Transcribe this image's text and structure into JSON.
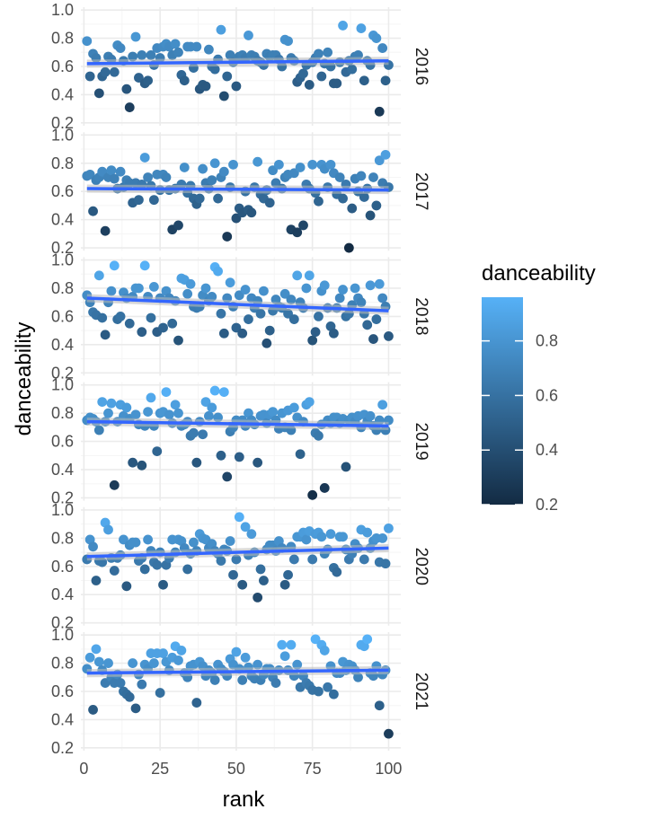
{
  "chart_data": {
    "type": "scatter",
    "title": "",
    "xlabel": "rank",
    "ylabel": "danceability",
    "xlim": [
      -1,
      104
    ],
    "ylim": [
      0.18,
      1.02
    ],
    "x_ticks": [
      0,
      25,
      50,
      75,
      100
    ],
    "y_ticks": [
      0.2,
      0.4,
      0.6,
      0.8,
      1.0
    ],
    "x_tick_labels": [
      "0",
      "25",
      "50",
      "75",
      "100"
    ],
    "y_tick_labels": [
      "0.2",
      "0.4",
      "0.6",
      "0.8",
      "1.0"
    ],
    "colors": {
      "low": "#132b43",
      "high": "#56b1f7",
      "trend": "#3366ff",
      "trend_band": "#bbbbbb",
      "grid_major": "#ebebeb",
      "grid_minor": "#f5f5f5"
    },
    "legend": {
      "title": "danceability",
      "placement": "right",
      "range": [
        0.2,
        0.96
      ],
      "breaks": [
        0.2,
        0.4,
        0.6,
        0.8
      ],
      "labels": [
        "0.2",
        "0.4",
        "0.6",
        "0.8"
      ]
    },
    "panels": [
      {
        "label": "2016",
        "trend": [
          0.62,
          0.64
        ],
        "values": [
          0.78,
          0.53,
          0.69,
          0.66,
          0.41,
          0.53,
          0.56,
          0.67,
          0.65,
          0.56,
          0.75,
          0.73,
          0.64,
          0.44,
          0.31,
          0.67,
          0.81,
          0.52,
          0.68,
          0.48,
          0.5,
          0.68,
          0.61,
          0.73,
          0.66,
          0.74,
          0.76,
          0.74,
          0.68,
          0.76,
          0.7,
          0.54,
          0.5,
          0.74,
          0.74,
          0.59,
          0.74,
          0.44,
          0.47,
          0.46,
          0.72,
          0.6,
          0.58,
          0.65,
          0.86,
          0.39,
          0.53,
          0.68,
          0.63,
          0.46,
          0.67,
          0.68,
          0.66,
          0.82,
          0.68,
          0.67,
          0.64,
          0.63,
          0.61,
          0.69,
          0.67,
          0.68,
          0.68,
          0.65,
          0.6,
          0.79,
          0.78,
          0.66,
          0.64,
          0.49,
          0.52,
          0.55,
          0.61,
          0.47,
          0.63,
          0.66,
          0.69,
          0.53,
          0.62,
          0.7,
          0.6,
          0.48,
          0.48,
          0.63,
          0.89,
          0.56,
          0.64,
          0.58,
          0.67,
          0.68,
          0.87,
          0.5,
          0.64,
          0.61,
          0.82,
          0.8,
          0.28,
          0.73,
          0.5,
          0.61
        ]
      },
      {
        "label": "2017",
        "trend": [
          0.62,
          0.61
        ],
        "values": [
          0.71,
          0.72,
          0.46,
          0.68,
          0.7,
          0.74,
          0.32,
          0.7,
          0.75,
          0.69,
          0.62,
          0.74,
          0.63,
          0.68,
          0.66,
          0.52,
          0.66,
          0.54,
          0.65,
          0.84,
          0.7,
          0.64,
          0.54,
          0.72,
          0.61,
          0.72,
          0.7,
          0.61,
          0.33,
          0.62,
          0.36,
          0.65,
          0.77,
          0.59,
          0.64,
          0.55,
          0.51,
          0.55,
          0.76,
          0.66,
          0.62,
          0.68,
          0.8,
          0.55,
          0.7,
          0.74,
          0.28,
          0.63,
          0.79,
          0.41,
          0.48,
          0.45,
          0.6,
          0.47,
          0.45,
          0.63,
          0.81,
          0.58,
          0.55,
          0.61,
          0.52,
          0.75,
          0.66,
          0.79,
          0.62,
          0.7,
          0.72,
          0.33,
          0.73,
          0.31,
          0.77,
          0.36,
          0.65,
          0.62,
          0.79,
          0.59,
          0.53,
          0.79,
          0.76,
          0.63,
          0.79,
          0.73,
          0.58,
          0.7,
          0.55,
          0.65,
          0.2,
          0.48,
          0.69,
          0.6,
          0.71,
          0.56,
          0.62,
          0.43,
          0.7,
          0.5,
          0.82,
          0.66,
          0.86,
          0.63
        ]
      },
      {
        "label": "2018",
        "trend": [
          0.73,
          0.64
        ],
        "values": [
          0.75,
          0.7,
          0.63,
          0.61,
          0.89,
          0.59,
          0.47,
          0.7,
          0.78,
          0.96,
          0.58,
          0.6,
          0.77,
          0.73,
          0.55,
          0.74,
          0.8,
          0.8,
          0.49,
          0.96,
          0.74,
          0.59,
          0.81,
          0.49,
          0.73,
          0.52,
          0.78,
          0.73,
          0.55,
          0.71,
          0.43,
          0.87,
          0.86,
          0.76,
          0.83,
          0.67,
          0.66,
          0.67,
          0.75,
          0.8,
          0.71,
          0.74,
          0.95,
          0.92,
          0.62,
          0.48,
          0.73,
          0.84,
          0.67,
          0.52,
          0.75,
          0.48,
          0.79,
          0.58,
          0.73,
          0.66,
          0.71,
          0.62,
          0.78,
          0.41,
          0.5,
          0.64,
          0.72,
          0.67,
          0.66,
          0.76,
          0.62,
          0.72,
          0.58,
          0.89,
          0.7,
          0.66,
          0.8,
          0.89,
          0.43,
          0.49,
          0.6,
          0.78,
          0.82,
          0.66,
          0.53,
          0.48,
          0.66,
          0.73,
          0.79,
          0.6,
          0.62,
          0.68,
          0.8,
          0.73,
          0.7,
          0.62,
          0.54,
          0.82,
          0.44,
          0.58,
          0.83,
          0.73,
          0.67,
          0.46
        ]
      },
      {
        "label": "2019",
        "trend": [
          0.74,
          0.71
        ],
        "values": [
          0.75,
          0.77,
          0.76,
          0.74,
          0.68,
          0.88,
          0.74,
          0.8,
          0.87,
          0.29,
          0.74,
          0.86,
          0.78,
          0.84,
          0.76,
          0.45,
          0.79,
          0.72,
          0.43,
          0.71,
          0.81,
          0.91,
          0.71,
          0.53,
          0.8,
          0.81,
          0.95,
          0.79,
          0.73,
          0.86,
          0.8,
          0.71,
          0.72,
          0.74,
          0.64,
          0.66,
          0.45,
          0.74,
          0.65,
          0.88,
          0.78,
          0.84,
          0.96,
          0.77,
          0.5,
          0.95,
          0.35,
          0.67,
          0.7,
          0.75,
          0.49,
          0.75,
          0.71,
          0.8,
          0.75,
          0.72,
          0.45,
          0.78,
          0.79,
          0.73,
          0.79,
          0.81,
          0.75,
          0.69,
          0.8,
          0.7,
          0.82,
          0.68,
          0.84,
          0.77,
          0.51,
          0.74,
          0.86,
          0.88,
          0.22,
          0.66,
          0.64,
          0.72,
          0.27,
          0.75,
          0.73,
          0.77,
          0.77,
          0.73,
          0.76,
          0.42,
          0.75,
          0.77,
          0.74,
          0.78,
          0.7,
          0.79,
          0.74,
          0.78,
          0.71,
          0.68,
          0.75,
          0.86,
          0.68,
          0.75
        ]
      },
      {
        "label": "2020",
        "trend": [
          0.67,
          0.73
        ],
        "values": [
          0.65,
          0.79,
          0.74,
          0.5,
          0.64,
          0.63,
          0.91,
          0.86,
          0.66,
          0.57,
          0.66,
          0.68,
          0.79,
          0.46,
          0.75,
          0.77,
          0.77,
          0.64,
          0.66,
          0.58,
          0.79,
          0.71,
          0.63,
          0.61,
          0.7,
          0.47,
          0.61,
          0.66,
          0.79,
          0.7,
          0.79,
          0.78,
          0.73,
          0.58,
          0.69,
          0.77,
          0.71,
          0.83,
          0.8,
          0.79,
          0.73,
          0.76,
          0.71,
          0.69,
          0.64,
          0.72,
          0.71,
          0.78,
          0.54,
          0.65,
          0.95,
          0.47,
          0.88,
          0.68,
          0.83,
          0.7,
          0.38,
          0.58,
          0.5,
          0.72,
          0.75,
          0.75,
          0.71,
          0.78,
          0.73,
          0.47,
          0.54,
          0.74,
          0.65,
          0.81,
          0.81,
          0.84,
          0.79,
          0.85,
          0.65,
          0.83,
          0.84,
          0.81,
          0.69,
          0.72,
          0.83,
          0.59,
          0.56,
          0.81,
          0.81,
          0.72,
          0.65,
          0.69,
          0.76,
          0.73,
          0.86,
          0.65,
          0.84,
          0.73,
          0.78,
          0.8,
          0.63,
          0.8,
          0.62,
          0.87
        ]
      },
      {
        "label": "2021",
        "trend": [
          0.73,
          0.75
        ],
        "values": [
          0.76,
          0.84,
          0.47,
          0.9,
          0.81,
          0.75,
          0.66,
          0.8,
          0.7,
          0.66,
          0.72,
          0.66,
          0.6,
          0.58,
          0.56,
          0.8,
          0.48,
          0.72,
          0.65,
          0.79,
          0.76,
          0.87,
          0.8,
          0.87,
          0.59,
          0.87,
          0.81,
          0.75,
          0.84,
          0.92,
          0.82,
          0.89,
          0.73,
          0.7,
          0.78,
          0.79,
          0.52,
          0.81,
          0.78,
          0.71,
          0.75,
          0.73,
          0.68,
          0.79,
          0.76,
          0.74,
          0.71,
          0.83,
          0.79,
          0.88,
          0.76,
          0.68,
          0.84,
          0.77,
          0.71,
          0.69,
          0.79,
          0.68,
          0.72,
          0.76,
          0.76,
          0.7,
          0.66,
          0.75,
          0.93,
          0.85,
          0.75,
          0.93,
          0.71,
          0.79,
          0.63,
          0.71,
          0.66,
          0.64,
          0.61,
          0.97,
          0.6,
          0.93,
          0.89,
          0.63,
          0.78,
          0.58,
          0.73,
          0.73,
          0.81,
          0.75,
          0.79,
          0.78,
          0.75,
          0.7,
          0.93,
          0.92,
          0.97,
          0.73,
          0.71,
          0.78,
          0.5,
          0.72,
          0.75,
          0.3
        ]
      }
    ]
  }
}
